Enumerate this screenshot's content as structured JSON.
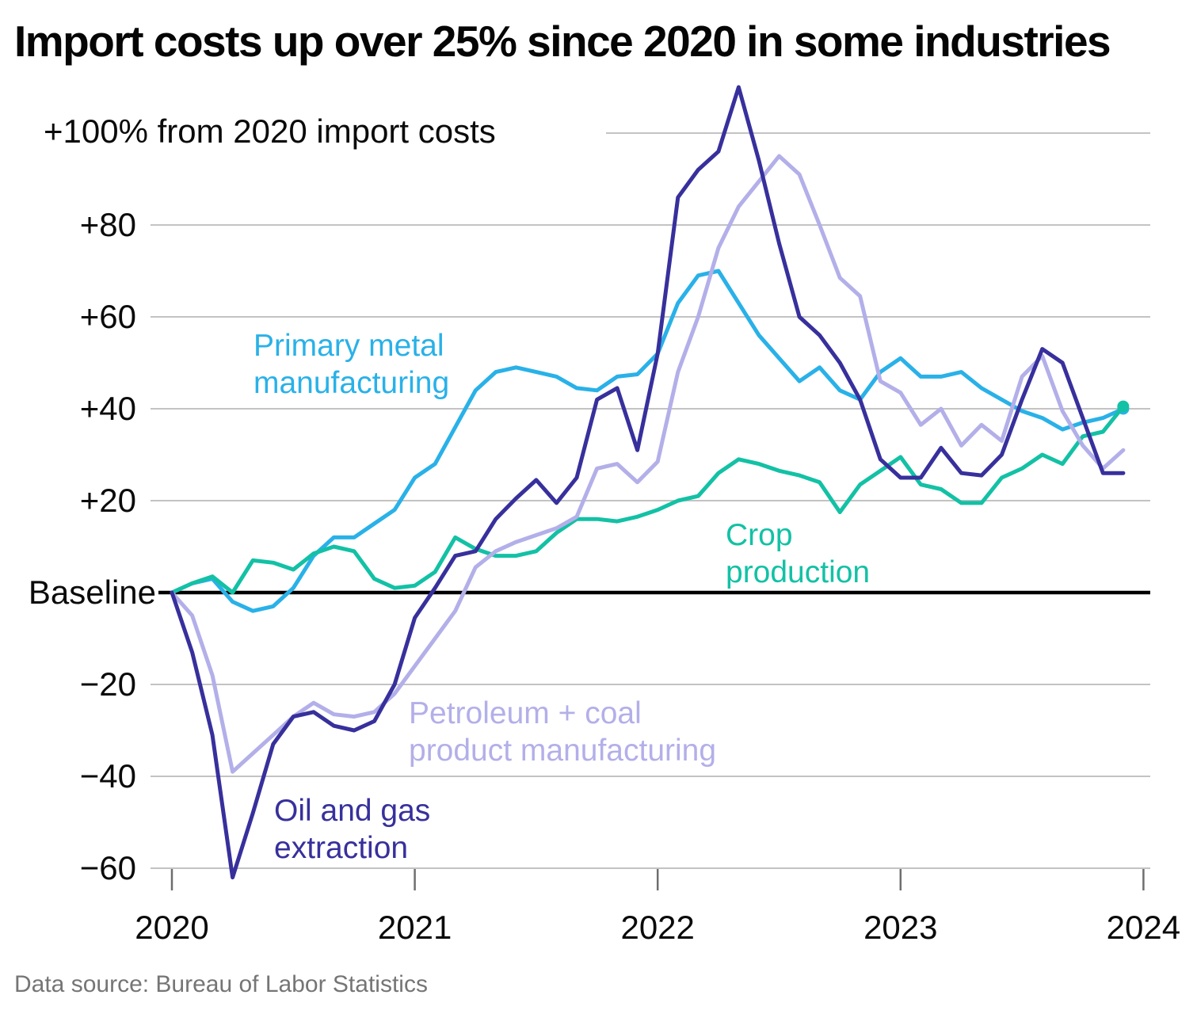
{
  "chart_data": {
    "type": "line",
    "title": "Import costs up over 25% since 2020 in some industries",
    "y_axis_unit_label": "+100% from 2020 import costs",
    "y_axis_unit_value": 100,
    "baseline": {
      "label": "Baseline",
      "value": 0
    },
    "ylim": [
      -62,
      110
    ],
    "grid": true,
    "legend_position": "inline-labels",
    "x_start": "Jan 2020",
    "x_interval": "monthly",
    "x_ticks": [
      {
        "label": "2020",
        "month": 0
      },
      {
        "label": "2021",
        "month": 12
      },
      {
        "label": "2022",
        "month": 24
      },
      {
        "label": "2023",
        "month": 36
      },
      {
        "label": "2024",
        "month": 48
      }
    ],
    "y_ticks": [
      {
        "label": "+80",
        "value": 80
      },
      {
        "label": "+60",
        "value": 60
      },
      {
        "label": "+40",
        "value": 40
      },
      {
        "label": "+20",
        "value": 20
      },
      {
        "label": "−20",
        "value": -20
      },
      {
        "label": "−40",
        "value": -40
      },
      {
        "label": "−60",
        "value": -60
      }
    ],
    "series": [
      {
        "id": "primary-metal",
        "label_lines": [
          "Primary metal",
          "manufacturing"
        ],
        "color": "#29B1E8",
        "end_dot": true,
        "values": [
          0,
          2,
          3,
          -2,
          -4,
          -3,
          1,
          8,
          12,
          12,
          15,
          18,
          25,
          28,
          36,
          44,
          48,
          49,
          48,
          47,
          44.5,
          44,
          47,
          47.5,
          52,
          63,
          69,
          70,
          63,
          56,
          51,
          46,
          49,
          44,
          42,
          48,
          51,
          47,
          47,
          48,
          44.5,
          42,
          39.5,
          38,
          35.5,
          37,
          38,
          40
        ]
      },
      {
        "id": "crop-production",
        "label_lines": [
          "Crop",
          "production"
        ],
        "color": "#13C1A5",
        "end_dot": true,
        "values": [
          0,
          2,
          3.5,
          0,
          7,
          6.5,
          5,
          8.5,
          10,
          9,
          3,
          1,
          1.5,
          4.5,
          12,
          9.5,
          8,
          8,
          9,
          13,
          16,
          16,
          15.5,
          16.5,
          18,
          20,
          21,
          26,
          29,
          28,
          26.5,
          25.5,
          24,
          17.5,
          23.5,
          26.5,
          29.5,
          23.5,
          22.5,
          19.5,
          19.5,
          25,
          27,
          30,
          28,
          34,
          35,
          40.5
        ]
      },
      {
        "id": "petroleum-coal",
        "label_lines": [
          "Petroleum + coal",
          "product manufacturing"
        ],
        "color": "#B3AFE9",
        "end_dot": false,
        "values": [
          0,
          -5,
          -18,
          -39,
          -35,
          -31,
          -27,
          -24,
          -26.5,
          -27,
          -26,
          -22,
          -16,
          -10,
          -4,
          5.5,
          9,
          11,
          12.5,
          14,
          16.5,
          27,
          28,
          24,
          28.5,
          48,
          60,
          75,
          84,
          89.5,
          95,
          91,
          80,
          68.5,
          64.5,
          46,
          43.5,
          36.5,
          40,
          32,
          36.5,
          33,
          47,
          51.5,
          39.5,
          32,
          27,
          31
        ]
      },
      {
        "id": "oil-gas",
        "label_lines": [
          "Oil and gas",
          "extraction"
        ],
        "color": "#37309C",
        "end_dot": false,
        "values": [
          0,
          -13,
          -31,
          -62,
          -48,
          -33,
          -27,
          -26,
          -29,
          -30,
          -28,
          -20,
          -5.5,
          1,
          8,
          9,
          16,
          20.5,
          24.5,
          19.5,
          25,
          42,
          44.5,
          31,
          52,
          86,
          92,
          96,
          110,
          94,
          76,
          60,
          56,
          50,
          42,
          29,
          25,
          25,
          31.5,
          26,
          25.5,
          30,
          42,
          53,
          50,
          38,
          26,
          26
        ]
      }
    ],
    "colors": {
      "baseline": "#000000",
      "gridline": "#c3c3c3",
      "tick": "#6e6e6e",
      "title": "#050505",
      "source": "#757575"
    },
    "source": "Data source: Bureau of Labor Statistics"
  }
}
